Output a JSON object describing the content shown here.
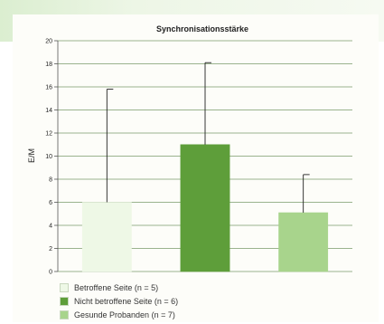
{
  "chart_data": {
    "type": "bar",
    "title": "Synchronisationsstärke",
    "ylabel": "E/M",
    "xlabel": "",
    "ylim": [
      0,
      20
    ],
    "yticks": [
      0,
      2,
      4,
      6,
      8,
      10,
      12,
      14,
      16,
      18,
      20
    ],
    "grid": true,
    "legend_position": "bottom-left",
    "series": [
      {
        "name": "Betroffene Seite (n = 5)",
        "value": 6.0,
        "error_upper": 15.8,
        "color": "#eef8e6"
      },
      {
        "name": "Nicht betroffene Seite (n = 6)",
        "value": 11.0,
        "error_upper": 18.1,
        "color": "#5e9e3a"
      },
      {
        "name": "Gesunde Probanden (n = 7)",
        "value": 5.1,
        "error_upper": 8.4,
        "color": "#a8d48c"
      }
    ]
  }
}
